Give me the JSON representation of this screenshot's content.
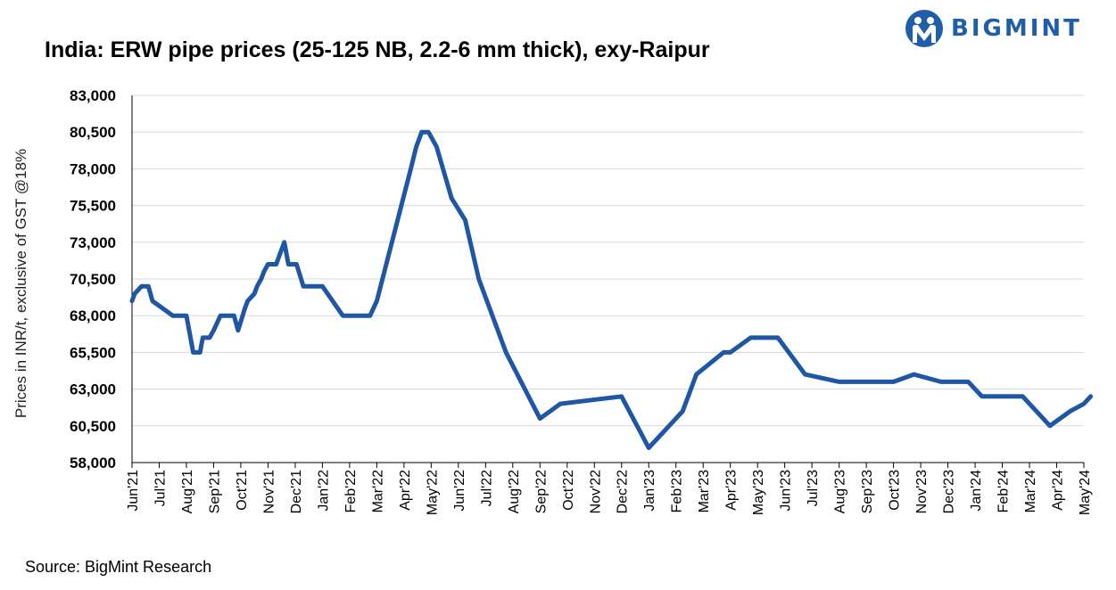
{
  "title": "India: ERW pipe prices (25-125 NB, 2.2-6 mm thick), exy-Raipur",
  "brand": {
    "name": "BIGMINT",
    "color": "#1f5fa8",
    "icon": "bigmint-logo-icon"
  },
  "source": "Source: BigMint Research",
  "chart_data": {
    "type": "line",
    "title": "India: ERW pipe prices (25-125 NB, 2.2-6 mm thick), exy-Raipur",
    "ylabel": "Prices in INR/t, exclusive of GST @18%",
    "xlabel": "",
    "ylim": [
      58000,
      83000
    ],
    "yticks": [
      58000,
      60500,
      63000,
      65500,
      68000,
      70500,
      73000,
      75500,
      78000,
      80500,
      83000
    ],
    "ytick_labels": [
      "58,000",
      "60,500",
      "63,000",
      "65,500",
      "68,000",
      "70,500",
      "73,000",
      "75,500",
      "78,000",
      "80,500",
      "83,000"
    ],
    "categories": [
      "Jun'21",
      "Jul'21",
      "Aug'21",
      "Sep'21",
      "Oct'21",
      "Nov'21",
      "Dec'21",
      "Jan'22",
      "Feb'22",
      "Mar'22",
      "Apr'22",
      "May'22",
      "Jun'22",
      "Jul'22",
      "Aug'22",
      "Sep'22",
      "Oct'22",
      "Nov'22",
      "Dec'22",
      "Jan'23",
      "Feb'23",
      "Mar'23",
      "Apr'23",
      "May'23",
      "Jun'23",
      "Jul'23",
      "Aug'23",
      "Sep'23",
      "Oct'23",
      "Nov'23",
      "Dec'23",
      "Jan'24",
      "Feb'24",
      "Mar'24",
      "Apr'24",
      "May'24"
    ],
    "grid": true,
    "line_color": "#1f56a5",
    "series": [
      {
        "x": [
          0,
          0.1,
          0.35,
          0.6,
          0.75,
          1.5,
          1.75,
          2.0,
          2.1,
          2.25,
          2.5,
          2.6,
          2.85,
          3.0,
          3.25,
          3.35,
          3.5,
          3.75,
          3.9,
          4.15,
          4.25,
          4.5,
          4.6,
          4.75,
          4.85,
          5.0,
          5.3,
          5.4,
          5.6,
          5.75,
          6.0,
          6.05,
          6.3,
          6.4,
          7.0,
          7.75,
          8.0,
          8.5,
          8.75,
          9.0,
          10.25,
          10.45,
          10.65,
          10.9,
          11.2,
          11.75,
          12.25,
          12.75,
          13.75,
          15.0,
          15.75,
          18.0,
          19.0,
          19.75,
          20.25,
          20.75,
          21.75,
          22.0,
          22.75,
          23.75,
          24.75,
          26.0,
          26.75,
          28.0,
          28.75,
          29.75,
          30.75,
          31.25,
          32.0,
          32.75,
          33.75,
          34.5,
          35.0,
          35.25
        ],
        "y": [
          69000,
          69500,
          70000,
          70000,
          69000,
          68000,
          68000,
          68000,
          67000,
          65500,
          65500,
          66500,
          66500,
          67000,
          68000,
          68000,
          68000,
          68000,
          67000,
          68500,
          69000,
          69500,
          70000,
          70500,
          71000,
          71500,
          71500,
          72000,
          73000,
          71500,
          71500,
          71500,
          70000,
          70000,
          70000,
          68000,
          68000,
          68000,
          68000,
          69000,
          78000,
          79500,
          80500,
          80500,
          79500,
          76000,
          74500,
          70500,
          65500,
          61000,
          62000,
          62500,
          59000,
          60500,
          61500,
          64000,
          65500,
          65500,
          66500,
          66500,
          64000,
          63500,
          63500,
          63500,
          64000,
          63500,
          63500,
          62500,
          62500,
          62500,
          60500,
          61500,
          62000,
          62500
        ]
      }
    ]
  }
}
